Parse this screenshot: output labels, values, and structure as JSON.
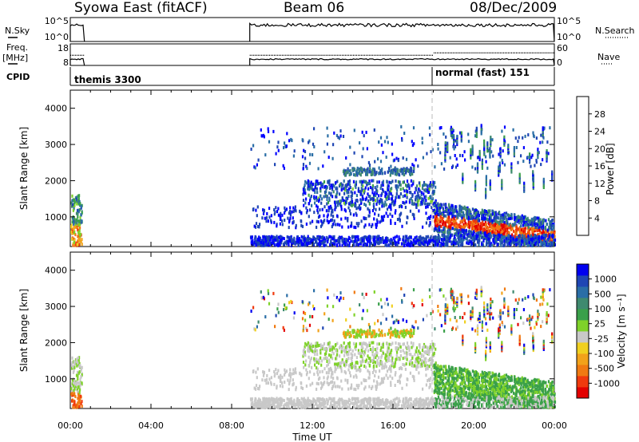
{
  "header": {
    "station": "Syowa East (fitACF)",
    "beam": "Beam 06",
    "date": "08/Dec/2009"
  },
  "strip_labels": {
    "nsky": "N.Sky",
    "freq": "Freq.",
    "freq_unit": "[MHz]",
    "cpid": "CPID",
    "nsearch": "N.Search",
    "nave": "Nave",
    "nsky_ticks": [
      "10^5",
      "10^0"
    ],
    "nsearch_ticks": [
      "10^5",
      "10^0"
    ],
    "freq_ticks": [
      "18",
      "8"
    ],
    "nave_ticks": [
      "60",
      "0"
    ]
  },
  "cpid": {
    "mode1": "themis 3300",
    "mode2": "normal (fast) 151"
  },
  "colors": {
    "power_scale": [
      "#0000ff",
      "#1f46b4",
      "#2a6ea6",
      "#3f8a6f",
      "#3aa04a",
      "#7fd22a",
      "#f0d020",
      "#f2a21a",
      "#f07a12",
      "#f03a0e",
      "#e30000"
    ],
    "velocity_scale": [
      "#0000f0",
      "#1f46b4",
      "#2a6ea6",
      "#3f8a6f",
      "#3aa04a",
      "#7fd22a",
      "#c8c8c8",
      "#f0d020",
      "#f2a21a",
      "#f07a12",
      "#f03a0e",
      "#e30000"
    ],
    "ground_scatter": "#c0c0c0"
  },
  "chart_data": [
    {
      "type": "heatmap",
      "title": "Power",
      "ylabel": "Slant Range [km]",
      "xlabel": "",
      "x_ticks": [
        "00:00",
        "04:00",
        "08:00",
        "12:00",
        "16:00",
        "20:00",
        "00:00"
      ],
      "x_range_hours": [
        0,
        24
      ],
      "y_range": [
        180,
        4500
      ],
      "y_ticks": [
        1000,
        2000,
        3000,
        4000
      ],
      "colorbar_label": "Power [dB]",
      "colorbar_ticks": [
        "4",
        "8",
        "12",
        "16",
        "20",
        "24",
        "28"
      ],
      "colorbar_range": [
        0,
        30
      ],
      "data_segments_hours": [
        [
          0.0,
          0.7
        ],
        [
          8.9,
          24.0
        ]
      ],
      "mode_change_hour": 18.05
    },
    {
      "type": "heatmap",
      "title": "Velocity",
      "ylabel": "Slant Range [km]",
      "xlabel": "Time UT",
      "x_ticks": [
        "00:00",
        "04:00",
        "08:00",
        "12:00",
        "16:00",
        "20:00",
        "00:00"
      ],
      "x_range_hours": [
        0,
        24
      ],
      "y_range": [
        180,
        4500
      ],
      "y_ticks": [
        1000,
        2000,
        3000,
        4000
      ],
      "colorbar_label": "Velocity [m s⁻¹]",
      "colorbar_ticks": [
        "1000",
        "500",
        "100",
        "25",
        "-25",
        "-100",
        "-500",
        "-1000"
      ],
      "colorbar_range": [
        -1000,
        1000
      ],
      "data_segments_hours": [
        [
          0.0,
          0.7
        ],
        [
          8.9,
          24.0
        ]
      ],
      "mode_change_hour": 18.05
    }
  ]
}
